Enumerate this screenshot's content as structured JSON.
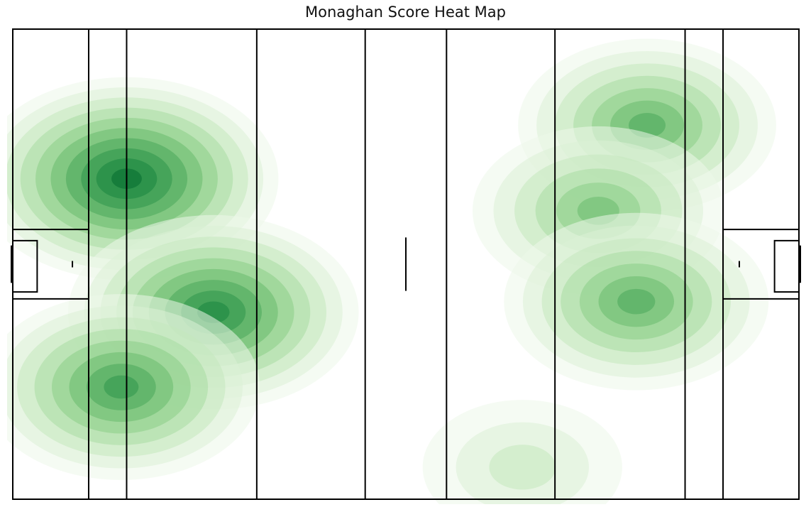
{
  "title": "Monaghan Score Heat Map",
  "colors": {
    "background": "#ffffff",
    "lines": "#000000",
    "levels": [
      "#edf8e9",
      "#dbf1d5",
      "#c4e8bd",
      "#a8dca2",
      "#8acd86",
      "#6abb6d",
      "#4aa85b",
      "#2f954d",
      "#198540",
      "#036b2f"
    ]
  },
  "chart_data": {
    "type": "heatmap",
    "title": "Monaghan Score Heat Map",
    "xlabel": "",
    "ylabel": "",
    "grid": false,
    "legend": "none",
    "cmap": "Greens",
    "xlim": [
      0,
      145
    ],
    "ylim": [
      0,
      88
    ],
    "pitch_lines_x": [
      0,
      14,
      21,
      45,
      65,
      80,
      100,
      124,
      131,
      145
    ],
    "hotspots": [
      {
        "x": 21,
        "y": 60,
        "weight": 1.0
      },
      {
        "x": 37,
        "y": 35,
        "weight": 0.9
      },
      {
        "x": 20,
        "y": 21,
        "weight": 0.8
      },
      {
        "x": 117,
        "y": 70,
        "weight": 0.65
      },
      {
        "x": 108,
        "y": 54,
        "weight": 0.6
      },
      {
        "x": 115,
        "y": 37,
        "weight": 0.7
      },
      {
        "x": 94,
        "y": 6,
        "weight": 0.2
      }
    ]
  }
}
